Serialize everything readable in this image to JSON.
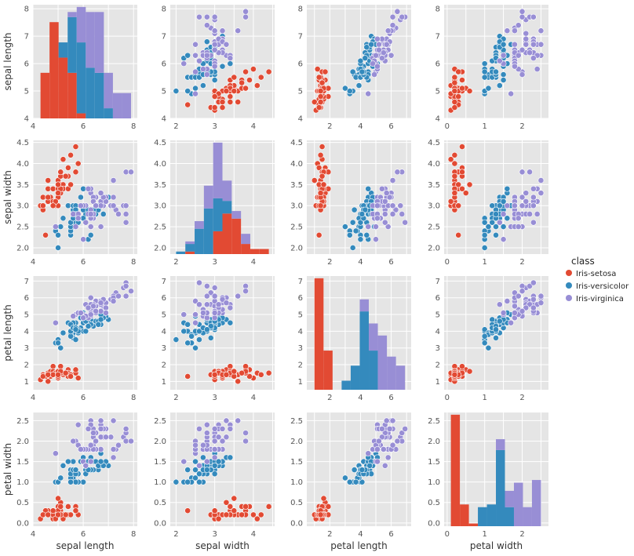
{
  "chart_data": {
    "type": "scatter",
    "description": "Pair plot matrix (4x4) of iris measurements: diagonal panels are stacked histograms per class, off-diagonal panels are scatter plots.",
    "variables": [
      "sepal length",
      "sepal width",
      "petal length",
      "petal width"
    ],
    "axis_ranges": {
      "sepal length": [
        4.0,
        8.15
      ],
      "sepal width": [
        1.85,
        4.55
      ],
      "petal length": [
        0.5,
        7.3
      ],
      "petal width": [
        -0.08,
        2.7
      ]
    },
    "ticks": {
      "sepal length": [
        4,
        5,
        6,
        7,
        8
      ],
      "sepal width": [
        2.0,
        2.5,
        3.0,
        3.5,
        4.0,
        4.5
      ],
      "petal length": [
        1,
        2,
        3,
        4,
        5,
        6,
        7
      ],
      "petal width": [
        0.0,
        0.5,
        1.0,
        1.5,
        2.0,
        2.5
      ]
    },
    "x_tick_labels": {
      "sepal length": [
        "4",
        "6",
        "8"
      ],
      "sepal width": [
        "2",
        "3",
        "4"
      ],
      "petal length": [
        "2",
        "4",
        "6"
      ],
      "petal width": [
        "0",
        "1",
        "2"
      ]
    },
    "y_tick_labels": {
      "sepal length": [
        "4",
        "5",
        "6",
        "7",
        "8"
      ],
      "sepal width": [
        "2.0",
        "2.5",
        "3.0",
        "3.5",
        "4.0",
        "4.5"
      ],
      "petal length": [
        "1",
        "2",
        "3",
        "4",
        "5",
        "6",
        "7"
      ],
      "petal width": [
        "0.0",
        "0.5",
        "1.0",
        "1.5",
        "2.0",
        "2.5"
      ]
    },
    "grid": true,
    "legend": {
      "title": "class",
      "position": "right",
      "entries": [
        {
          "name": "Iris-setosa",
          "color": "#e24a33"
        },
        {
          "name": "Iris-versicolor",
          "color": "#348abd"
        },
        {
          "name": "Iris-virginica",
          "color": "#988ed5"
        }
      ]
    },
    "histograms": {
      "sepal length": {
        "bins": [
          [
            4.3,
            4.66
          ],
          [
            4.66,
            5.02
          ],
          [
            5.02,
            5.38
          ],
          [
            5.38,
            5.74
          ],
          [
            5.74,
            6.1
          ],
          [
            6.1,
            6.46
          ],
          [
            6.46,
            6.82
          ],
          [
            6.82,
            7.18
          ],
          [
            7.18,
            7.54
          ],
          [
            7.54,
            7.9
          ]
        ],
        "counts": {
          "Iris-setosa": [
            9,
            19,
            12,
            9,
            1,
            0,
            0,
            0,
            0,
            0
          ],
          "Iris-versicolor": [
            0,
            0,
            3,
            11,
            14,
            10,
            9,
            2,
            0,
            0
          ],
          "Iris-virginica": [
            0,
            0,
            0,
            1,
            7,
            11,
            12,
            7,
            5,
            5
          ]
        }
      },
      "sepal width": {
        "bins": [
          [
            2.0,
            2.24
          ],
          [
            2.24,
            2.48
          ],
          [
            2.48,
            2.72
          ],
          [
            2.72,
            2.96
          ],
          [
            2.96,
            3.2
          ],
          [
            3.2,
            3.44
          ],
          [
            3.44,
            3.68
          ],
          [
            3.68,
            3.92
          ],
          [
            3.92,
            4.16
          ],
          [
            4.16,
            4.4
          ]
        ],
        "counts": {
          "Iris-setosa": [
            0,
            1,
            0,
            0,
            9,
            16,
            14,
            4,
            2,
            2
          ],
          "Iris-versicolor": [
            1,
            3,
            10,
            18,
            13,
            5,
            0,
            0,
            0,
            0
          ],
          "Iris-virginica": [
            0,
            1,
            3,
            9,
            22,
            8,
            3,
            4,
            0,
            0
          ]
        }
      },
      "petal length": {
        "bins": [
          [
            1.0,
            1.59
          ],
          [
            1.59,
            2.18
          ],
          [
            2.18,
            2.77
          ],
          [
            2.77,
            3.36
          ],
          [
            3.36,
            3.95
          ],
          [
            3.95,
            4.54
          ],
          [
            4.54,
            5.13
          ],
          [
            5.13,
            5.72
          ],
          [
            5.72,
            6.31
          ],
          [
            6.31,
            6.9
          ]
        ],
        "counts": {
          "Iris-setosa": [
            37,
            13,
            0,
            0,
            0,
            0,
            0,
            0,
            0,
            0
          ],
          "Iris-versicolor": [
            0,
            0,
            0,
            3,
            8,
            26,
            13,
            0,
            0,
            0
          ],
          "Iris-virginica": [
            0,
            0,
            0,
            0,
            0,
            4,
            9,
            18,
            11,
            8
          ]
        }
      },
      "petal width": {
        "bins": [
          [
            0.1,
            0.34
          ],
          [
            0.34,
            0.58
          ],
          [
            0.58,
            0.82
          ],
          [
            0.82,
            1.06
          ],
          [
            1.06,
            1.3
          ],
          [
            1.3,
            1.54
          ],
          [
            1.54,
            1.78
          ],
          [
            1.78,
            2.02
          ],
          [
            2.02,
            2.26
          ],
          [
            2.26,
            2.5
          ]
        ],
        "counts": {
          "Iris-setosa": [
            41,
            8,
            1,
            0,
            0,
            0,
            0,
            0,
            0,
            0
          ],
          "Iris-versicolor": [
            0,
            0,
            0,
            7,
            8,
            28,
            7,
            0,
            0,
            0
          ],
          "Iris-virginica": [
            0,
            0,
            0,
            0,
            0,
            4,
            6,
            16,
            7,
            17
          ]
        }
      }
    },
    "points": {
      "Iris-setosa": [
        [
          5.1,
          3.5,
          1.4,
          0.2
        ],
        [
          4.9,
          3.0,
          1.4,
          0.2
        ],
        [
          4.7,
          3.2,
          1.3,
          0.2
        ],
        [
          4.6,
          3.1,
          1.5,
          0.2
        ],
        [
          5.0,
          3.6,
          1.4,
          0.2
        ],
        [
          5.4,
          3.9,
          1.7,
          0.4
        ],
        [
          4.6,
          3.4,
          1.4,
          0.3
        ],
        [
          5.0,
          3.4,
          1.5,
          0.2
        ],
        [
          4.4,
          2.9,
          1.4,
          0.2
        ],
        [
          4.9,
          3.1,
          1.5,
          0.1
        ],
        [
          5.4,
          3.7,
          1.5,
          0.2
        ],
        [
          4.8,
          3.4,
          1.6,
          0.2
        ],
        [
          4.8,
          3.0,
          1.4,
          0.1
        ],
        [
          4.3,
          3.0,
          1.1,
          0.1
        ],
        [
          5.8,
          4.0,
          1.2,
          0.2
        ],
        [
          5.7,
          4.4,
          1.5,
          0.4
        ],
        [
          5.4,
          3.9,
          1.3,
          0.4
        ],
        [
          5.1,
          3.5,
          1.4,
          0.3
        ],
        [
          5.7,
          3.8,
          1.7,
          0.3
        ],
        [
          5.1,
          3.8,
          1.5,
          0.3
        ],
        [
          5.4,
          3.4,
          1.7,
          0.2
        ],
        [
          5.1,
          3.7,
          1.5,
          0.4
        ],
        [
          4.6,
          3.6,
          1.0,
          0.2
        ],
        [
          5.1,
          3.3,
          1.7,
          0.5
        ],
        [
          4.8,
          3.4,
          1.9,
          0.2
        ],
        [
          5.0,
          3.0,
          1.6,
          0.2
        ],
        [
          5.0,
          3.4,
          1.6,
          0.4
        ],
        [
          5.2,
          3.5,
          1.5,
          0.2
        ],
        [
          5.2,
          3.4,
          1.4,
          0.2
        ],
        [
          4.7,
          3.2,
          1.6,
          0.2
        ],
        [
          4.8,
          3.1,
          1.6,
          0.2
        ],
        [
          5.4,
          3.4,
          1.5,
          0.4
        ],
        [
          5.2,
          4.1,
          1.5,
          0.1
        ],
        [
          5.5,
          4.2,
          1.4,
          0.2
        ],
        [
          4.9,
          3.1,
          1.5,
          0.1
        ],
        [
          5.0,
          3.2,
          1.2,
          0.2
        ],
        [
          5.5,
          3.5,
          1.3,
          0.2
        ],
        [
          4.9,
          3.1,
          1.5,
          0.1
        ],
        [
          4.4,
          3.0,
          1.3,
          0.2
        ],
        [
          5.1,
          3.4,
          1.5,
          0.2
        ],
        [
          5.0,
          3.5,
          1.3,
          0.3
        ],
        [
          4.5,
          2.3,
          1.3,
          0.3
        ],
        [
          4.4,
          3.2,
          1.3,
          0.2
        ],
        [
          5.0,
          3.5,
          1.6,
          0.6
        ],
        [
          5.1,
          3.8,
          1.9,
          0.4
        ],
        [
          4.8,
          3.0,
          1.4,
          0.3
        ],
        [
          5.1,
          3.8,
          1.6,
          0.2
        ],
        [
          4.6,
          3.2,
          1.4,
          0.2
        ],
        [
          5.3,
          3.7,
          1.5,
          0.2
        ],
        [
          5.0,
          3.3,
          1.4,
          0.2
        ]
      ],
      "Iris-versicolor": [
        [
          7.0,
          3.2,
          4.7,
          1.4
        ],
        [
          6.4,
          3.2,
          4.5,
          1.5
        ],
        [
          6.9,
          3.1,
          4.9,
          1.5
        ],
        [
          5.5,
          2.3,
          4.0,
          1.3
        ],
        [
          6.5,
          2.8,
          4.6,
          1.5
        ],
        [
          5.7,
          2.8,
          4.5,
          1.3
        ],
        [
          6.3,
          3.3,
          4.7,
          1.6
        ],
        [
          4.9,
          2.4,
          3.3,
          1.0
        ],
        [
          6.6,
          2.9,
          4.6,
          1.3
        ],
        [
          5.2,
          2.7,
          3.9,
          1.4
        ],
        [
          5.0,
          2.0,
          3.5,
          1.0
        ],
        [
          5.9,
          3.0,
          4.2,
          1.5
        ],
        [
          6.0,
          2.2,
          4.0,
          1.0
        ],
        [
          6.1,
          2.9,
          4.7,
          1.4
        ],
        [
          5.6,
          2.9,
          3.6,
          1.3
        ],
        [
          6.7,
          3.1,
          4.4,
          1.4
        ],
        [
          5.6,
          3.0,
          4.5,
          1.5
        ],
        [
          5.8,
          2.7,
          4.1,
          1.0
        ],
        [
          6.2,
          2.2,
          4.5,
          1.5
        ],
        [
          5.6,
          2.5,
          3.9,
          1.1
        ],
        [
          5.9,
          3.2,
          4.8,
          1.8
        ],
        [
          6.1,
          2.8,
          4.0,
          1.3
        ],
        [
          6.3,
          2.5,
          4.9,
          1.5
        ],
        [
          6.1,
          2.8,
          4.7,
          1.2
        ],
        [
          6.4,
          2.9,
          4.3,
          1.3
        ],
        [
          6.6,
          3.0,
          4.4,
          1.4
        ],
        [
          6.8,
          2.8,
          4.8,
          1.4
        ],
        [
          6.7,
          3.0,
          5.0,
          1.7
        ],
        [
          6.0,
          2.9,
          4.5,
          1.5
        ],
        [
          5.7,
          2.6,
          3.5,
          1.0
        ],
        [
          5.5,
          2.4,
          3.8,
          1.1
        ],
        [
          5.5,
          2.4,
          3.7,
          1.0
        ],
        [
          5.8,
          2.7,
          3.9,
          1.2
        ],
        [
          6.0,
          2.7,
          5.1,
          1.6
        ],
        [
          5.4,
          3.0,
          4.5,
          1.5
        ],
        [
          6.0,
          3.4,
          4.5,
          1.6
        ],
        [
          6.7,
          3.1,
          4.7,
          1.5
        ],
        [
          6.3,
          2.3,
          4.4,
          1.3
        ],
        [
          5.6,
          3.0,
          4.1,
          1.3
        ],
        [
          5.5,
          2.5,
          4.0,
          1.3
        ],
        [
          5.5,
          2.6,
          4.4,
          1.2
        ],
        [
          6.1,
          3.0,
          4.6,
          1.4
        ],
        [
          5.8,
          2.6,
          4.0,
          1.2
        ],
        [
          5.0,
          2.3,
          3.3,
          1.0
        ],
        [
          5.6,
          2.7,
          4.2,
          1.3
        ],
        [
          5.7,
          3.0,
          4.2,
          1.2
        ],
        [
          5.7,
          2.9,
          4.2,
          1.3
        ],
        [
          6.2,
          2.9,
          4.3,
          1.3
        ],
        [
          5.1,
          2.5,
          3.0,
          1.1
        ],
        [
          5.7,
          2.8,
          4.1,
          1.3
        ]
      ],
      "Iris-virginica": [
        [
          6.3,
          3.3,
          6.0,
          2.5
        ],
        [
          5.8,
          2.7,
          5.1,
          1.9
        ],
        [
          7.1,
          3.0,
          5.9,
          2.1
        ],
        [
          6.3,
          2.9,
          5.6,
          1.8
        ],
        [
          6.5,
          3.0,
          5.8,
          2.2
        ],
        [
          7.6,
          3.0,
          6.6,
          2.1
        ],
        [
          4.9,
          2.5,
          4.5,
          1.7
        ],
        [
          7.3,
          2.9,
          6.3,
          1.8
        ],
        [
          6.7,
          2.5,
          5.8,
          1.8
        ],
        [
          7.2,
          3.6,
          6.1,
          2.5
        ],
        [
          6.5,
          3.2,
          5.1,
          2.0
        ],
        [
          6.4,
          2.7,
          5.3,
          1.9
        ],
        [
          6.8,
          3.0,
          5.5,
          2.1
        ],
        [
          5.7,
          2.5,
          5.0,
          2.0
        ],
        [
          5.8,
          2.8,
          5.1,
          2.4
        ],
        [
          6.4,
          3.2,
          5.3,
          2.3
        ],
        [
          6.5,
          3.0,
          5.5,
          1.8
        ],
        [
          7.7,
          3.8,
          6.7,
          2.2
        ],
        [
          7.7,
          2.6,
          6.9,
          2.3
        ],
        [
          6.0,
          2.2,
          5.0,
          1.5
        ],
        [
          6.9,
          3.2,
          5.7,
          2.3
        ],
        [
          5.6,
          2.8,
          4.9,
          2.0
        ],
        [
          7.7,
          2.8,
          6.7,
          2.0
        ],
        [
          6.3,
          2.7,
          4.9,
          1.8
        ],
        [
          6.7,
          3.3,
          5.7,
          2.1
        ],
        [
          7.2,
          3.2,
          6.0,
          1.8
        ],
        [
          6.2,
          2.8,
          4.8,
          1.8
        ],
        [
          6.1,
          3.0,
          4.9,
          1.8
        ],
        [
          6.4,
          2.8,
          5.6,
          2.1
        ],
        [
          7.2,
          3.0,
          5.8,
          1.6
        ],
        [
          7.4,
          2.8,
          6.1,
          1.9
        ],
        [
          7.9,
          3.8,
          6.4,
          2.0
        ],
        [
          6.4,
          2.8,
          5.6,
          2.2
        ],
        [
          6.3,
          2.8,
          5.1,
          1.5
        ],
        [
          6.1,
          2.6,
          5.6,
          1.4
        ],
        [
          7.7,
          3.0,
          6.1,
          2.3
        ],
        [
          6.3,
          3.4,
          5.6,
          2.4
        ],
        [
          6.4,
          3.1,
          5.5,
          1.8
        ],
        [
          6.0,
          3.0,
          4.8,
          1.8
        ],
        [
          6.9,
          3.1,
          5.4,
          2.1
        ],
        [
          6.7,
          3.1,
          5.6,
          2.4
        ],
        [
          6.9,
          3.1,
          5.1,
          2.3
        ],
        [
          5.8,
          2.7,
          5.1,
          1.9
        ],
        [
          6.8,
          3.2,
          5.9,
          2.3
        ],
        [
          6.7,
          3.3,
          5.7,
          2.5
        ],
        [
          6.7,
          3.0,
          5.2,
          2.3
        ],
        [
          6.3,
          2.5,
          5.0,
          1.9
        ],
        [
          6.5,
          3.0,
          5.2,
          2.0
        ],
        [
          6.2,
          3.4,
          5.4,
          2.3
        ],
        [
          5.9,
          3.0,
          5.1,
          1.8
        ]
      ]
    }
  }
}
